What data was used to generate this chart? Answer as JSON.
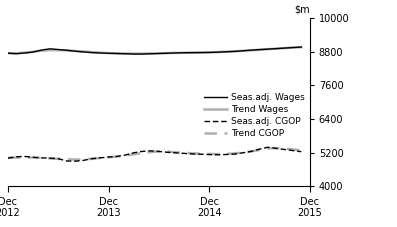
{
  "ylim": [
    4000,
    10000
  ],
  "yticks": [
    4000,
    5200,
    6400,
    7600,
    8800,
    10000
  ],
  "xlim": [
    0,
    36
  ],
  "xtick_positions": [
    0,
    12,
    24,
    36
  ],
  "xtick_labels": [
    "Dec\n2012",
    "Dec\n2013",
    "Dec\n2014",
    "Dec\n2015"
  ],
  "seas_wages": [
    8750,
    8730,
    8755,
    8790,
    8860,
    8905,
    8880,
    8855,
    8820,
    8795,
    8770,
    8755,
    8745,
    8738,
    8728,
    8718,
    8718,
    8728,
    8738,
    8748,
    8758,
    8765,
    8768,
    8770,
    8775,
    8785,
    8798,
    8812,
    8833,
    8858,
    8876,
    8895,
    8912,
    8930,
    8950,
    8968
  ],
  "trend_wages": [
    8748,
    8748,
    8768,
    8798,
    8838,
    8858,
    8856,
    8848,
    8828,
    8808,
    8788,
    8768,
    8752,
    8742,
    8737,
    8733,
    8733,
    8738,
    8743,
    8752,
    8758,
    8763,
    8768,
    8773,
    8778,
    8788,
    8800,
    8815,
    8832,
    8852,
    8870,
    8890,
    8910,
    8930,
    8950,
    8963
  ],
  "seas_cgop": [
    5000,
    5050,
    5060,
    5030,
    5010,
    5000,
    4980,
    4900,
    4890,
    4920,
    4980,
    5010,
    5040,
    5060,
    5110,
    5190,
    5240,
    5260,
    5240,
    5210,
    5190,
    5170,
    5150,
    5140,
    5130,
    5120,
    5130,
    5145,
    5190,
    5240,
    5320,
    5390,
    5350,
    5310,
    5270,
    5230
  ],
  "trend_cgop": [
    5010,
    5020,
    5025,
    5020,
    5010,
    4990,
    4975,
    4960,
    4950,
    4958,
    4978,
    5005,
    5032,
    5058,
    5095,
    5138,
    5182,
    5218,
    5238,
    5232,
    5212,
    5192,
    5172,
    5158,
    5148,
    5145,
    5152,
    5168,
    5195,
    5238,
    5292,
    5348,
    5358,
    5345,
    5312,
    5275
  ],
  "color_black": "#000000",
  "color_gray": "#b0b0b0",
  "legend_labels": [
    "Seas.adj. Wages",
    "Trend Wages",
    "Seas.adj. CGOP",
    "Trend CGOP"
  ]
}
